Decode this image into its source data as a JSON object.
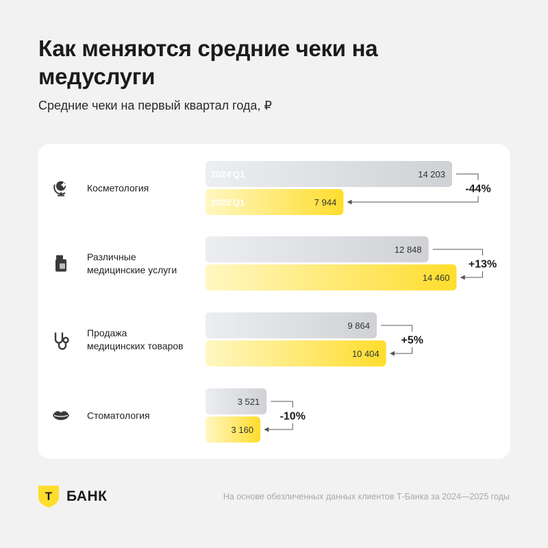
{
  "title": "Как меняются средние чеки на медуслуги",
  "subtitle": "Средние чеки на первый квартал года, ₽",
  "colors": {
    "prev_bar_start": "#eceef1",
    "prev_bar_end": "#cfd1d5",
    "curr_bar_start": "#fff7c2",
    "curr_bar_end": "#ffdd2d",
    "icon": "#3a3a3a"
  },
  "chart_data": {
    "type": "bar",
    "orientation": "horizontal",
    "series_labels": [
      "2024'Q1",
      "2025'Q1"
    ],
    "categories": [
      {
        "label": [
          "Косметология"
        ],
        "icon": "globe-icon",
        "prev": 14203,
        "prev_text": "14 203",
        "curr": 7944,
        "curr_text": "7 944",
        "change": "-44%"
      },
      {
        "label": [
          "Различные",
          "медицинские услуги"
        ],
        "icon": "pill-box-icon",
        "prev": 12848,
        "prev_text": "12 848",
        "curr": 14460,
        "curr_text": "14 460",
        "change": "+13%"
      },
      {
        "label": [
          "Продажа",
          "медицинских товаров"
        ],
        "icon": "stethoscope-icon",
        "prev": 9864,
        "prev_text": "9 864",
        "curr": 10404,
        "curr_text": "10 404",
        "change": "+5%"
      },
      {
        "label": [
          "Стоматология"
        ],
        "icon": "lips-icon",
        "prev": 3521,
        "prev_text": "3 521",
        "curr": 3160,
        "curr_text": "3 160",
        "change": "-10%"
      }
    ]
  },
  "footer": {
    "brand_letter": "Т",
    "brand_name": "БАНК",
    "note": "На основе обезличенных данных клиентов Т-Банка за 2024—2025 годы"
  }
}
